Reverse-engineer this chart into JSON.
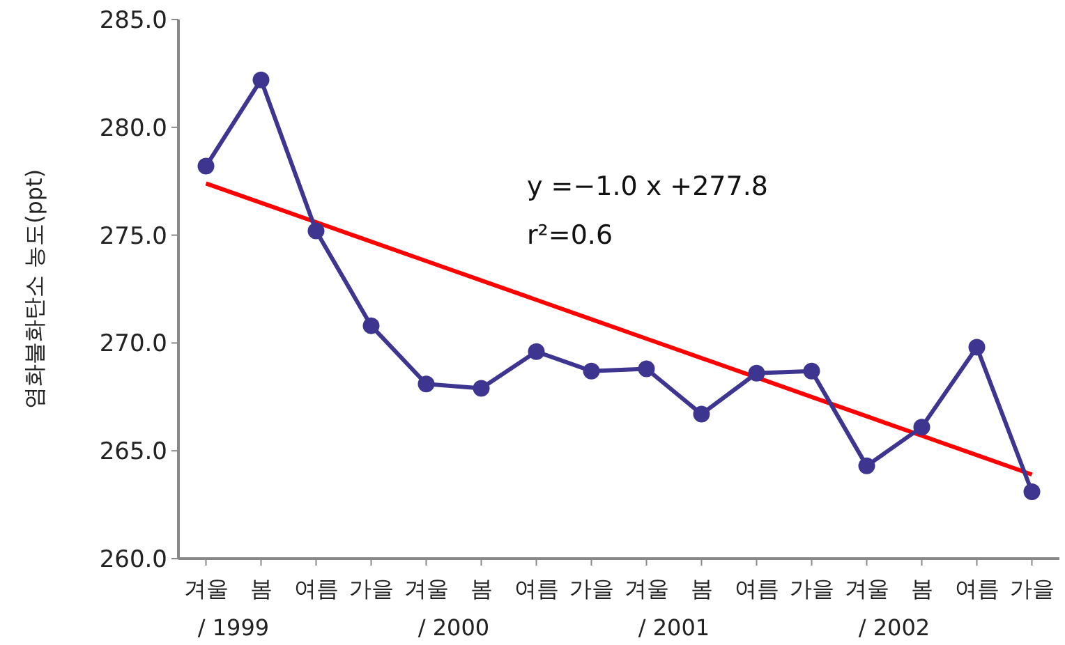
{
  "chart_data": {
    "type": "line",
    "ylabel": "염화불화탄소 농도(ppt)",
    "categories": [
      "겨울",
      "봄",
      "여름",
      "가을",
      "겨울",
      "봄",
      "여름",
      "가을",
      "겨울",
      "봄",
      "여름",
      "가을",
      "겨울",
      "봄",
      "여름",
      "가을"
    ],
    "ylim": [
      260,
      285
    ],
    "yticks": [
      {
        "value": 260,
        "label": "260.0"
      },
      {
        "value": 265,
        "label": "265.0"
      },
      {
        "value": 270,
        "label": "270.0"
      },
      {
        "value": 275,
        "label": "275.0"
      },
      {
        "value": 280,
        "label": "280.0"
      },
      {
        "value": 285,
        "label": "285.0"
      }
    ],
    "grid": false,
    "series": [
      {
        "type": "line",
        "color": "#3d3590",
        "marker": "circle",
        "values": [
          278.2,
          282.2,
          275.2,
          270.8,
          268.1,
          267.9,
          269.6,
          268.7,
          268.8,
          266.7,
          268.6,
          268.7,
          264.3,
          266.1,
          269.8,
          263.1
        ]
      },
      {
        "type": "line",
        "color": "#ff0000",
        "marker": "none",
        "values": [
          277.4,
          276.5,
          275.6,
          274.7,
          273.8,
          272.9,
          272.0,
          271.1,
          270.2,
          269.3,
          268.4,
          267.5,
          266.6,
          265.7,
          264.8,
          263.9
        ]
      }
    ],
    "annotations": [
      {
        "text": "y =−1.0 x +277.8"
      },
      {
        "text": "r²=0.6"
      },
      {
        "text": "/ 1999"
      },
      {
        "text": "/ 2000"
      },
      {
        "text": "/ 2001"
      },
      {
        "text": "/ 2002"
      }
    ]
  }
}
